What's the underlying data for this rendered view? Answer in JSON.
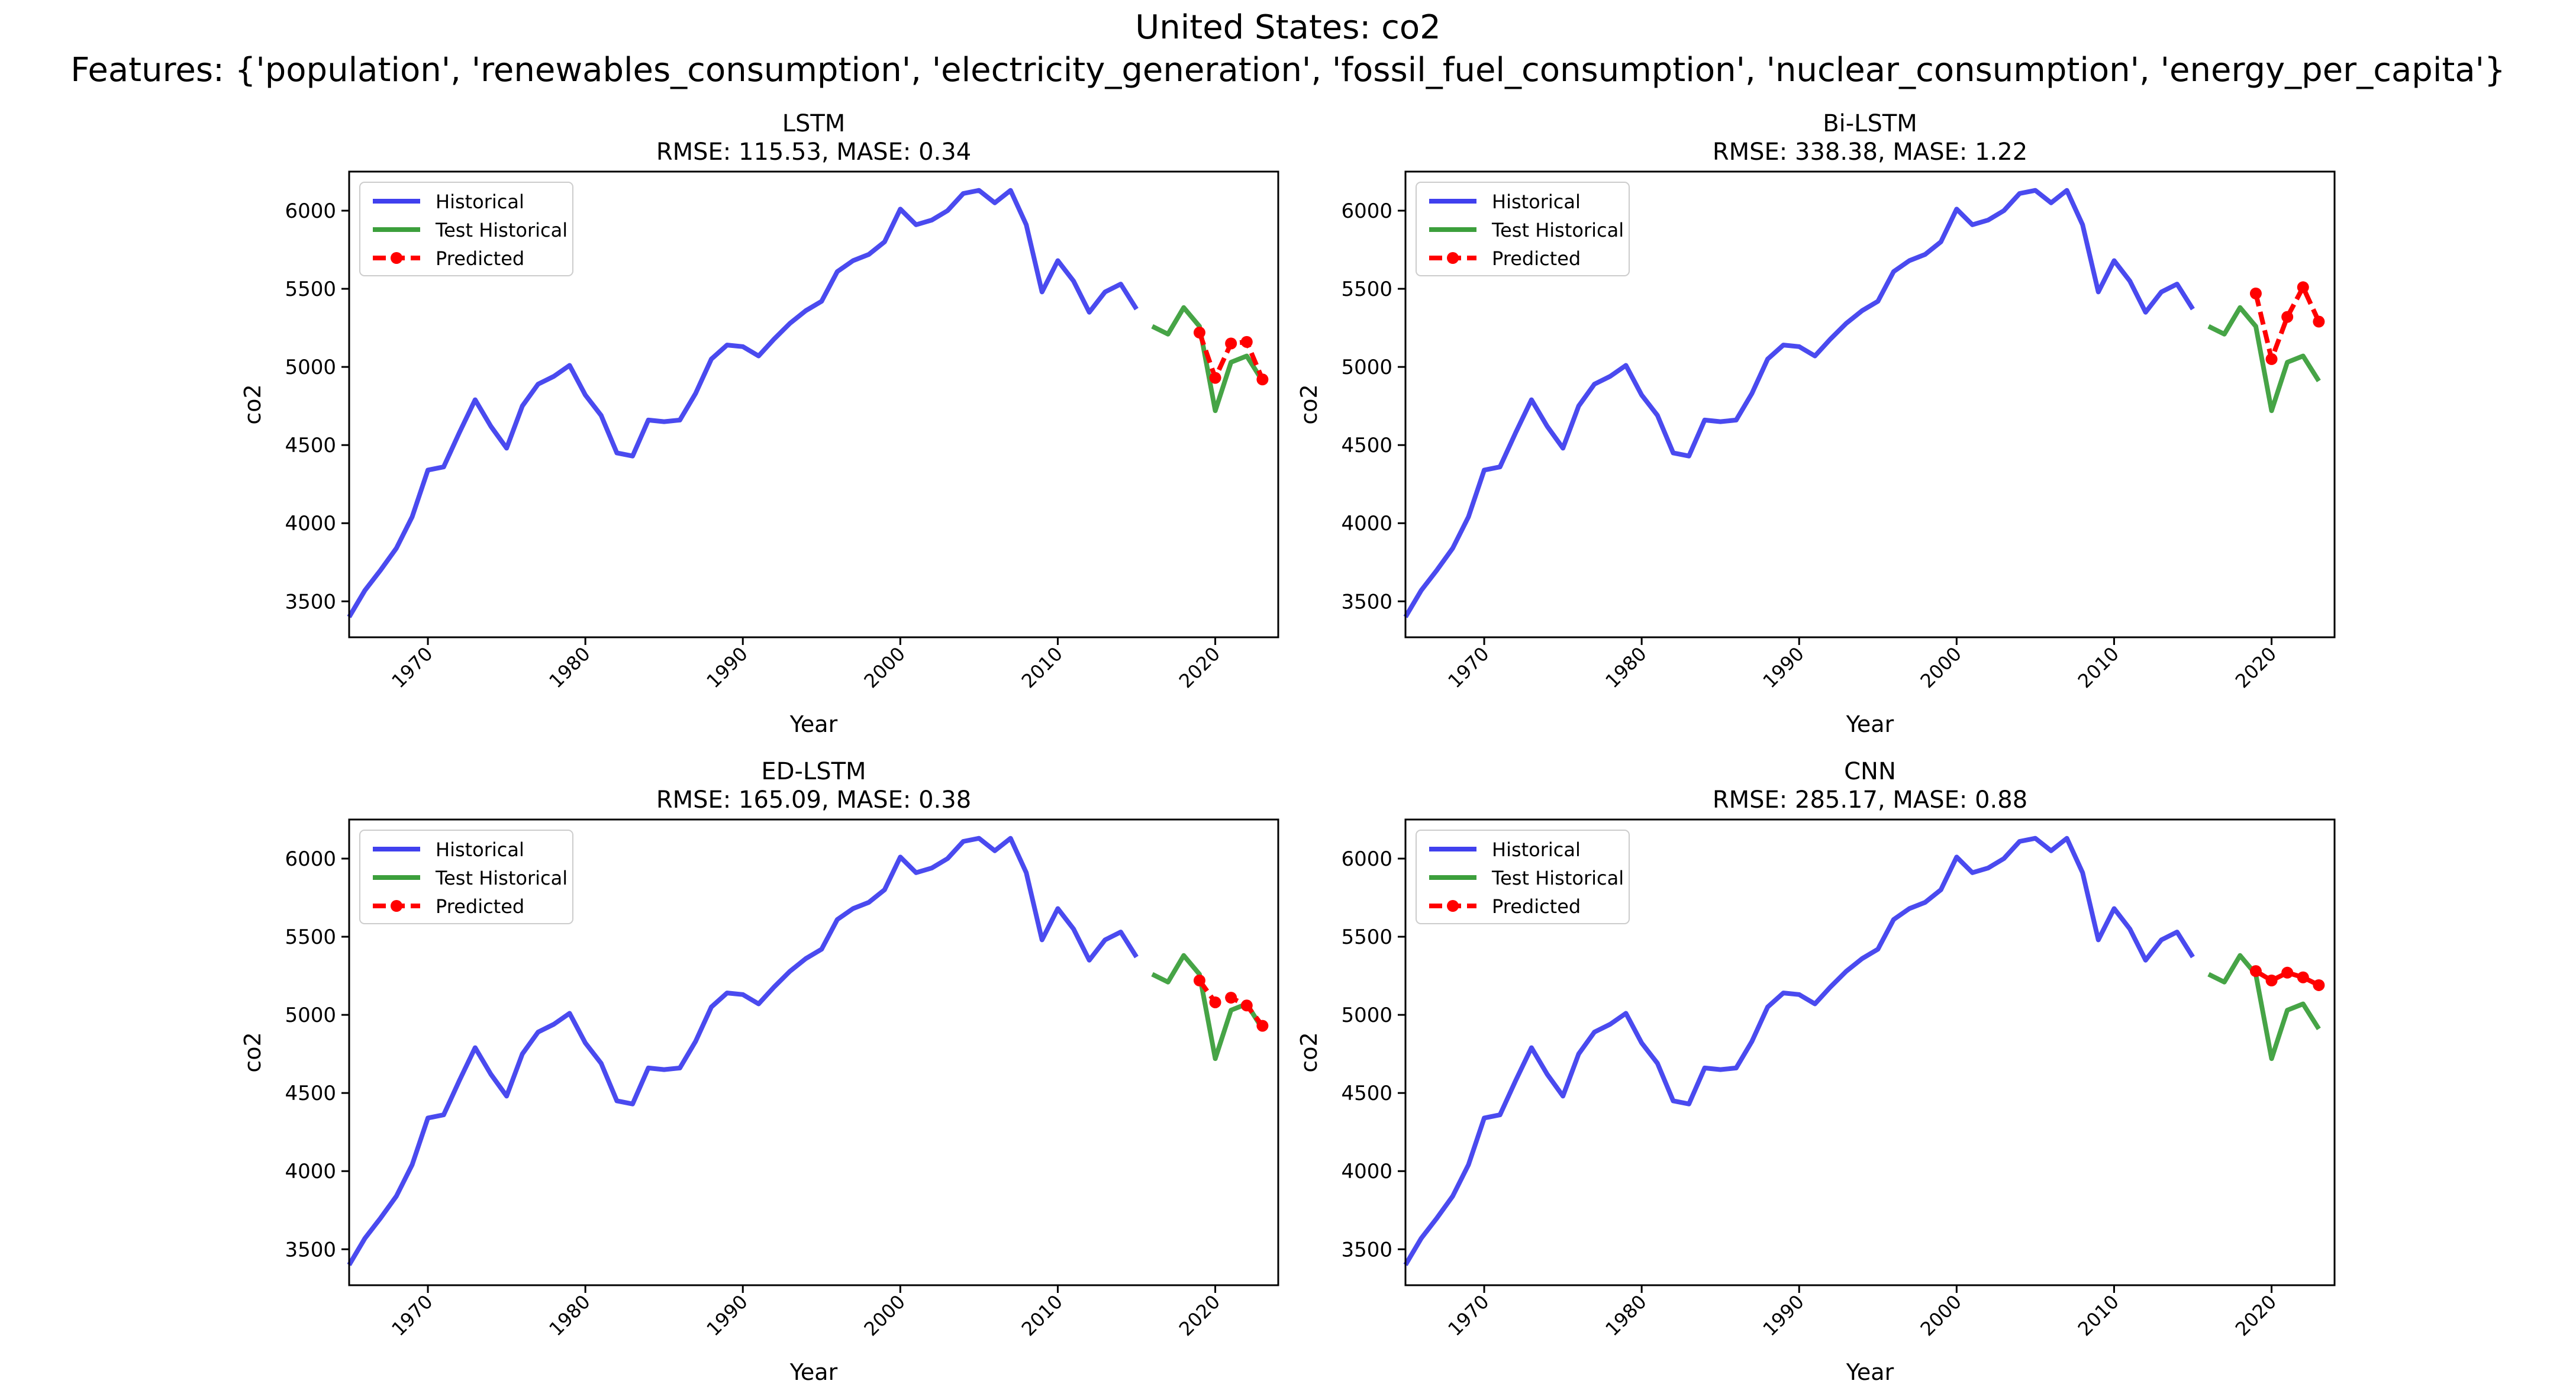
{
  "figure": {
    "title_line1": "United States: co2",
    "title_line2": "Features: {'population', 'renewables_consumption', 'electricity_generation', 'fossil_fuel_consumption', 'nuclear_consumption', 'energy_per_capita'}"
  },
  "colors": {
    "historical": "#4040ee",
    "test_historical": "#3c9f3c",
    "predicted": "#ff0000"
  },
  "chart_data": [
    {
      "type": "line",
      "title": "LSTM",
      "subtitle": "RMSE: 115.53, MASE: 0.34",
      "xlabel": "Year",
      "ylabel": "co2",
      "xlim": [
        1965,
        2024
      ],
      "ylim": [
        3270,
        6250
      ],
      "xticks": [
        1970,
        1980,
        1990,
        2000,
        2010,
        2020
      ],
      "yticks": [
        3500,
        4000,
        4500,
        5000,
        5500,
        6000
      ],
      "legend": {
        "position": "top-left",
        "entries": [
          "Historical",
          "Test Historical",
          "Predicted"
        ]
      },
      "series": [
        {
          "name": "Historical",
          "style": "solid",
          "x": [
            1965,
            1966,
            1967,
            1968,
            1969,
            1970,
            1971,
            1972,
            1973,
            1974,
            1975,
            1976,
            1977,
            1978,
            1979,
            1980,
            1981,
            1982,
            1983,
            1984,
            1985,
            1986,
            1987,
            1988,
            1989,
            1990,
            1991,
            1992,
            1993,
            1994,
            1995,
            1996,
            1997,
            1998,
            1999,
            2000,
            2001,
            2002,
            2003,
            2004,
            2005,
            2006,
            2007,
            2008,
            2009,
            2010,
            2011,
            2012,
            2013,
            2014,
            2015
          ],
          "y": [
            3400,
            3570,
            3700,
            3840,
            4040,
            4340,
            4360,
            4580,
            4790,
            4620,
            4480,
            4750,
            4890,
            4940,
            5010,
            4820,
            4690,
            4450,
            4430,
            4660,
            4650,
            4660,
            4830,
            5050,
            5140,
            5130,
            5070,
            5180,
            5280,
            5360,
            5420,
            5610,
            5680,
            5720,
            5800,
            6010,
            5910,
            5940,
            6000,
            6110,
            6130,
            6050,
            6130,
            5910,
            5480,
            5680,
            5550,
            5350,
            5480,
            5530,
            5370
          ]
        },
        {
          "name": "Test Historical",
          "style": "solid",
          "x": [
            2016,
            2017,
            2018,
            2019,
            2020,
            2021,
            2022,
            2023
          ],
          "y": [
            5260,
            5210,
            5380,
            5260,
            4720,
            5030,
            5070,
            4910
          ]
        },
        {
          "name": "Predicted",
          "style": "dashed-markers",
          "x": [
            2019,
            2020,
            2021,
            2022,
            2023
          ],
          "y": [
            5220,
            4930,
            5150,
            5160,
            4920
          ]
        }
      ]
    },
    {
      "type": "line",
      "title": "Bi-LSTM",
      "subtitle": "RMSE: 338.38, MASE: 1.22",
      "xlabel": "Year",
      "ylabel": "co2",
      "xlim": [
        1965,
        2024
      ],
      "ylim": [
        3270,
        6250
      ],
      "xticks": [
        1970,
        1980,
        1990,
        2000,
        2010,
        2020
      ],
      "yticks": [
        3500,
        4000,
        4500,
        5000,
        5500,
        6000
      ],
      "legend": {
        "position": "top-left",
        "entries": [
          "Historical",
          "Test Historical",
          "Predicted"
        ]
      },
      "series": [
        {
          "name": "Historical",
          "style": "solid",
          "x": [
            1965,
            1966,
            1967,
            1968,
            1969,
            1970,
            1971,
            1972,
            1973,
            1974,
            1975,
            1976,
            1977,
            1978,
            1979,
            1980,
            1981,
            1982,
            1983,
            1984,
            1985,
            1986,
            1987,
            1988,
            1989,
            1990,
            1991,
            1992,
            1993,
            1994,
            1995,
            1996,
            1997,
            1998,
            1999,
            2000,
            2001,
            2002,
            2003,
            2004,
            2005,
            2006,
            2007,
            2008,
            2009,
            2010,
            2011,
            2012,
            2013,
            2014,
            2015
          ],
          "y": [
            3400,
            3570,
            3700,
            3840,
            4040,
            4340,
            4360,
            4580,
            4790,
            4620,
            4480,
            4750,
            4890,
            4940,
            5010,
            4820,
            4690,
            4450,
            4430,
            4660,
            4650,
            4660,
            4830,
            5050,
            5140,
            5130,
            5070,
            5180,
            5280,
            5360,
            5420,
            5610,
            5680,
            5720,
            5800,
            6010,
            5910,
            5940,
            6000,
            6110,
            6130,
            6050,
            6130,
            5910,
            5480,
            5680,
            5550,
            5350,
            5480,
            5530,
            5370
          ]
        },
        {
          "name": "Test Historical",
          "style": "solid",
          "x": [
            2016,
            2017,
            2018,
            2019,
            2020,
            2021,
            2022,
            2023
          ],
          "y": [
            5260,
            5210,
            5380,
            5260,
            4720,
            5030,
            5070,
            4910
          ]
        },
        {
          "name": "Predicted",
          "style": "dashed-markers",
          "x": [
            2019,
            2020,
            2021,
            2022,
            2023
          ],
          "y": [
            5470,
            5050,
            5320,
            5510,
            5290
          ]
        }
      ]
    },
    {
      "type": "line",
      "title": "ED-LSTM",
      "subtitle": "RMSE: 165.09, MASE: 0.38",
      "xlabel": "Year",
      "ylabel": "co2",
      "xlim": [
        1965,
        2024
      ],
      "ylim": [
        3270,
        6250
      ],
      "xticks": [
        1970,
        1980,
        1990,
        2000,
        2010,
        2020
      ],
      "yticks": [
        3500,
        4000,
        4500,
        5000,
        5500,
        6000
      ],
      "legend": {
        "position": "top-left",
        "entries": [
          "Historical",
          "Test Historical",
          "Predicted"
        ]
      },
      "series": [
        {
          "name": "Historical",
          "style": "solid",
          "x": [
            1965,
            1966,
            1967,
            1968,
            1969,
            1970,
            1971,
            1972,
            1973,
            1974,
            1975,
            1976,
            1977,
            1978,
            1979,
            1980,
            1981,
            1982,
            1983,
            1984,
            1985,
            1986,
            1987,
            1988,
            1989,
            1990,
            1991,
            1992,
            1993,
            1994,
            1995,
            1996,
            1997,
            1998,
            1999,
            2000,
            2001,
            2002,
            2003,
            2004,
            2005,
            2006,
            2007,
            2008,
            2009,
            2010,
            2011,
            2012,
            2013,
            2014,
            2015
          ],
          "y": [
            3400,
            3570,
            3700,
            3840,
            4040,
            4340,
            4360,
            4580,
            4790,
            4620,
            4480,
            4750,
            4890,
            4940,
            5010,
            4820,
            4690,
            4450,
            4430,
            4660,
            4650,
            4660,
            4830,
            5050,
            5140,
            5130,
            5070,
            5180,
            5280,
            5360,
            5420,
            5610,
            5680,
            5720,
            5800,
            6010,
            5910,
            5940,
            6000,
            6110,
            6130,
            6050,
            6130,
            5910,
            5480,
            5680,
            5550,
            5350,
            5480,
            5530,
            5370
          ]
        },
        {
          "name": "Test Historical",
          "style": "solid",
          "x": [
            2016,
            2017,
            2018,
            2019,
            2020,
            2021,
            2022,
            2023
          ],
          "y": [
            5260,
            5210,
            5380,
            5260,
            4720,
            5030,
            5070,
            4910
          ]
        },
        {
          "name": "Predicted",
          "style": "dashed-markers",
          "x": [
            2019,
            2020,
            2021,
            2022,
            2023
          ],
          "y": [
            5220,
            5080,
            5110,
            5060,
            4930
          ]
        }
      ]
    },
    {
      "type": "line",
      "title": "CNN",
      "subtitle": "RMSE: 285.17, MASE: 0.88",
      "xlabel": "Year",
      "ylabel": "co2",
      "xlim": [
        1965,
        2024
      ],
      "ylim": [
        3270,
        6250
      ],
      "xticks": [
        1970,
        1980,
        1990,
        2000,
        2010,
        2020
      ],
      "yticks": [
        3500,
        4000,
        4500,
        5000,
        5500,
        6000
      ],
      "legend": {
        "position": "top-left",
        "entries": [
          "Historical",
          "Test Historical",
          "Predicted"
        ]
      },
      "series": [
        {
          "name": "Historical",
          "style": "solid",
          "x": [
            1965,
            1966,
            1967,
            1968,
            1969,
            1970,
            1971,
            1972,
            1973,
            1974,
            1975,
            1976,
            1977,
            1978,
            1979,
            1980,
            1981,
            1982,
            1983,
            1984,
            1985,
            1986,
            1987,
            1988,
            1989,
            1990,
            1991,
            1992,
            1993,
            1994,
            1995,
            1996,
            1997,
            1998,
            1999,
            2000,
            2001,
            2002,
            2003,
            2004,
            2005,
            2006,
            2007,
            2008,
            2009,
            2010,
            2011,
            2012,
            2013,
            2014,
            2015
          ],
          "y": [
            3400,
            3570,
            3700,
            3840,
            4040,
            4340,
            4360,
            4580,
            4790,
            4620,
            4480,
            4750,
            4890,
            4940,
            5010,
            4820,
            4690,
            4450,
            4430,
            4660,
            4650,
            4660,
            4830,
            5050,
            5140,
            5130,
            5070,
            5180,
            5280,
            5360,
            5420,
            5610,
            5680,
            5720,
            5800,
            6010,
            5910,
            5940,
            6000,
            6110,
            6130,
            6050,
            6130,
            5910,
            5480,
            5680,
            5550,
            5350,
            5480,
            5530,
            5370
          ]
        },
        {
          "name": "Test Historical",
          "style": "solid",
          "x": [
            2016,
            2017,
            2018,
            2019,
            2020,
            2021,
            2022,
            2023
          ],
          "y": [
            5260,
            5210,
            5380,
            5260,
            4720,
            5030,
            5070,
            4910
          ]
        },
        {
          "name": "Predicted",
          "style": "dashed-markers",
          "x": [
            2019,
            2020,
            2021,
            2022,
            2023
          ],
          "y": [
            5280,
            5220,
            5270,
            5240,
            5190
          ]
        }
      ]
    }
  ]
}
